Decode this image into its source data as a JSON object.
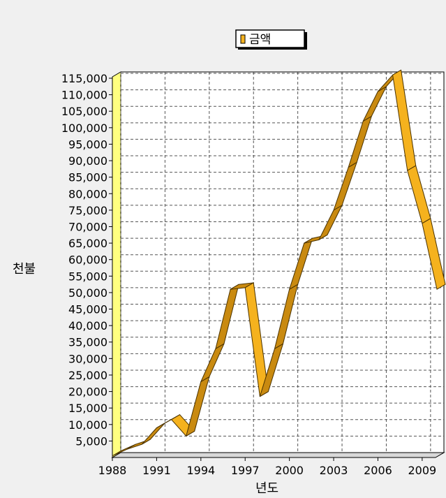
{
  "chart_data": {
    "type": "line",
    "style": "3d-ribbon",
    "legend": {
      "position": "top",
      "entries": [
        "금액"
      ]
    },
    "xlabel": "년도",
    "ylabel": "천불",
    "x": [
      1988,
      1989,
      1990,
      1991,
      1992,
      1993,
      1994,
      1995,
      1996,
      1997,
      1998,
      1999,
      2000,
      2001,
      2002,
      2003,
      2004,
      2005,
      2006,
      2007,
      2008,
      2009,
      2010
    ],
    "x_tick_labels": [
      "1988",
      "1991",
      "1994",
      "1997",
      "2000",
      "2003",
      "2006",
      "2009"
    ],
    "y_tick_labels": [
      "5,000",
      "10,000",
      "15,000",
      "20,000",
      "25,000",
      "30,000",
      "35,000",
      "40,000",
      "45,000",
      "50,000",
      "55,000",
      "60,000",
      "65,000",
      "70,000",
      "75,000",
      "80,000",
      "85,000",
      "90,000",
      "95,000",
      "100,000",
      "105,000",
      "110,000",
      "115,000"
    ],
    "ylim": [
      0,
      115000
    ],
    "grid": true,
    "series": [
      {
        "name": "금액",
        "color": "#f5b21e",
        "values": [
          500,
          2500,
          4000,
          9000,
          11500,
          6500,
          23000,
          33000,
          51000,
          51500,
          18500,
          33000,
          51000,
          65000,
          66000,
          75000,
          88000,
          102000,
          111000,
          116000,
          87000,
          71000,
          51000
        ]
      }
    ]
  },
  "colors": {
    "background": "#f0f0f0",
    "plot": "#ffffff",
    "wall": "#ffff80",
    "ribbon_edge": "#4a3200"
  }
}
